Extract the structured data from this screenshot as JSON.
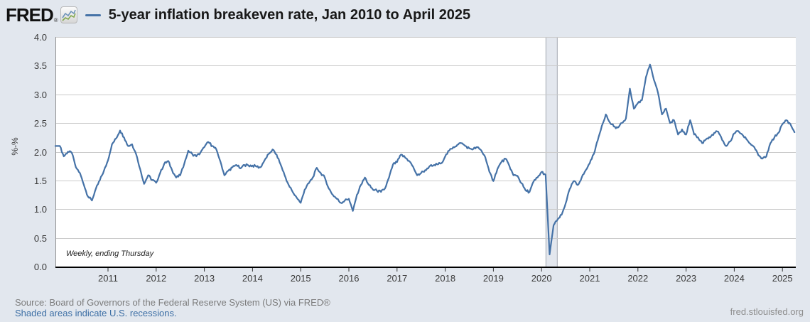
{
  "page": {
    "background_color": "#e2e7ee"
  },
  "header": {
    "logo_text": "FRED",
    "registered_mark": "®",
    "legend_dash_color": "#4572a7",
    "title": "5-year inflation breakeven rate, Jan 2010 to April 2025"
  },
  "chart_data": {
    "type": "line",
    "title": "5-year inflation breakeven rate, Jan 2010 to April 2025",
    "ylabel": "%-%",
    "ylim": [
      0.0,
      4.0
    ],
    "yticks": [
      "0.0",
      "0.5",
      "1.0",
      "1.5",
      "2.0",
      "2.5",
      "3.0",
      "3.5",
      "4.0"
    ],
    "xticks": [
      "2011",
      "2012",
      "2013",
      "2014",
      "2015",
      "2016",
      "2017",
      "2018",
      "2019",
      "2020",
      "2021",
      "2022",
      "2023",
      "2024",
      "2025"
    ],
    "x_range": [
      "2010-01",
      "2025-04"
    ],
    "grid": true,
    "legend_position": "top",
    "line_color": "#4572a7",
    "frequency_note": "Weekly, ending Thursday",
    "recession_bands": [
      {
        "start": "2020-02",
        "end": "2020-04"
      }
    ],
    "series": [
      {
        "name": "5-year inflation breakeven rate",
        "unit": "%",
        "start": "2010-01",
        "interval": "monthly",
        "values": [
          2.1,
          1.92,
          2.0,
          1.98,
          1.73,
          1.63,
          1.42,
          1.22,
          1.15,
          1.36,
          1.51,
          1.67,
          1.85,
          2.13,
          2.23,
          2.37,
          2.25,
          2.1,
          2.13,
          1.96,
          1.7,
          1.44,
          1.59,
          1.51,
          1.46,
          1.63,
          1.79,
          1.84,
          1.67,
          1.55,
          1.59,
          1.79,
          2.02,
          1.96,
          1.92,
          1.98,
          2.08,
          2.17,
          2.1,
          2.04,
          1.83,
          1.59,
          1.67,
          1.73,
          1.77,
          1.71,
          1.77,
          1.76,
          1.76,
          1.74,
          1.73,
          1.85,
          1.96,
          2.04,
          1.95,
          1.78,
          1.59,
          1.42,
          1.3,
          1.2,
          1.11,
          1.34,
          1.45,
          1.55,
          1.72,
          1.63,
          1.55,
          1.36,
          1.25,
          1.18,
          1.11,
          1.15,
          1.18,
          0.97,
          1.25,
          1.42,
          1.55,
          1.42,
          1.34,
          1.32,
          1.3,
          1.36,
          1.55,
          1.78,
          1.82,
          1.95,
          1.9,
          1.84,
          1.74,
          1.59,
          1.63,
          1.68,
          1.74,
          1.76,
          1.78,
          1.8,
          1.92,
          2.02,
          2.08,
          2.12,
          2.15,
          2.1,
          2.06,
          2.05,
          2.08,
          2.02,
          1.9,
          1.65,
          1.49,
          1.7,
          1.82,
          1.88,
          1.75,
          1.59,
          1.58,
          1.45,
          1.33,
          1.3,
          1.48,
          1.55,
          1.65,
          1.6,
          0.21,
          0.72,
          0.82,
          0.9,
          1.1,
          1.35,
          1.49,
          1.42,
          1.55,
          1.68,
          1.8,
          1.96,
          2.2,
          2.45,
          2.65,
          2.51,
          2.44,
          2.42,
          2.5,
          2.58,
          3.1,
          2.75,
          2.85,
          2.9,
          3.3,
          3.52,
          3.25,
          3.03,
          2.65,
          2.75,
          2.5,
          2.55,
          2.3,
          2.39,
          2.3,
          2.55,
          2.3,
          2.25,
          2.15,
          2.22,
          2.25,
          2.33,
          2.35,
          2.2,
          2.1,
          2.18,
          2.32,
          2.36,
          2.3,
          2.22,
          2.14,
          2.08,
          1.94,
          1.88,
          1.92,
          2.15,
          2.25,
          2.33,
          2.48,
          2.55,
          2.48,
          2.34
        ]
      }
    ]
  },
  "footer": {
    "source": "Source: Board of Governors of the Federal Reserve System (US) via FRED®",
    "recession_note": "Shaded areas indicate U.S. recessions.",
    "site": "fred.stlouisfed.org"
  }
}
